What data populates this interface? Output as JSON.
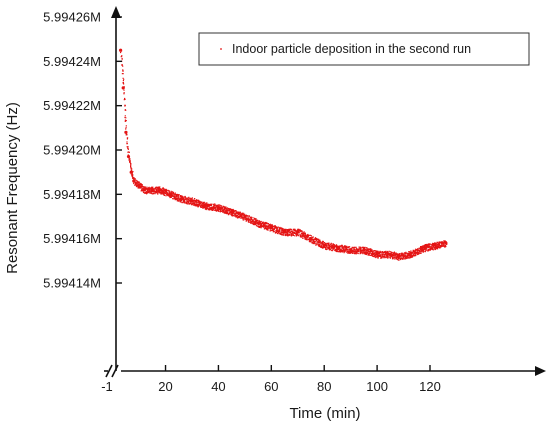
{
  "chart_data": {
    "type": "scatter",
    "title": "",
    "xlabel": "Time (min)",
    "ylabel": "Resonant Frequency (Hz)",
    "xlim": [
      -1,
      133
    ],
    "ylim": [
      5.99412,
      5.99426
    ],
    "x_ticks": [
      {
        "value": -1,
        "label": "-1"
      },
      {
        "value": 20,
        "label": "20"
      },
      {
        "value": 40,
        "label": "40"
      },
      {
        "value": 60,
        "label": "60"
      },
      {
        "value": 80,
        "label": "80"
      },
      {
        "value": 100,
        "label": "100"
      },
      {
        "value": 120,
        "label": "120"
      }
    ],
    "y_ticks": [
      {
        "value": 5.99414,
        "label": "5.99414M"
      },
      {
        "value": 5.99416,
        "label": "5.99416M"
      },
      {
        "value": 5.99418,
        "label": "5.99418M"
      },
      {
        "value": 5.9942,
        "label": "5.99420M"
      },
      {
        "value": 5.99422,
        "label": "5.99422M"
      },
      {
        "value": 5.99424,
        "label": "5.99424M"
      },
      {
        "value": 5.99426,
        "label": "5.99426M"
      }
    ],
    "x_axis_break": true,
    "grid": false,
    "legend_position": "top-right",
    "series": [
      {
        "name": "Indoor particle deposition in the second run",
        "color": "#e41414",
        "marker": "dot",
        "x": [
          3,
          4,
          5,
          6,
          7,
          8,
          10,
          12,
          15,
          18,
          22,
          26,
          30,
          35,
          40,
          45,
          50,
          55,
          60,
          65,
          70,
          75,
          80,
          85,
          90,
          95,
          100,
          105,
          108,
          112,
          118,
          122,
          126
        ],
        "y": [
          5.994245,
          5.994228,
          5.994208,
          5.994197,
          5.99419,
          5.994186,
          5.994184,
          5.994182,
          5.994182,
          5.994182,
          5.99418,
          5.994178,
          5.994177,
          5.994175,
          5.994174,
          5.994172,
          5.99417,
          5.994167,
          5.994165,
          5.994163,
          5.994163,
          5.99416,
          5.994157,
          5.994156,
          5.994155,
          5.994155,
          5.994153,
          5.994153,
          5.994152,
          5.994153,
          5.994156,
          5.994157,
          5.994158
        ]
      }
    ]
  }
}
